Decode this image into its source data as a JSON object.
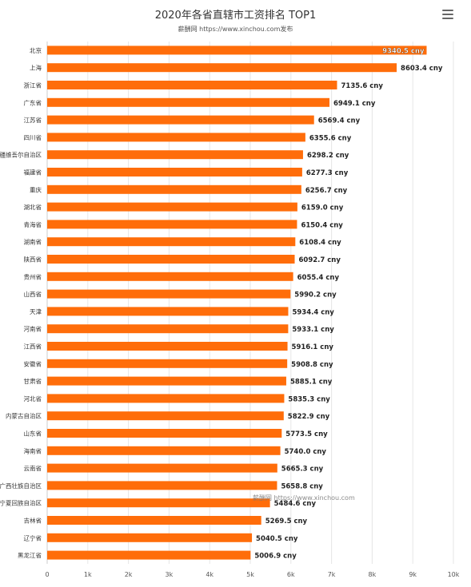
{
  "chart_data": {
    "type": "bar",
    "orientation": "horizontal",
    "title": "2020年各省直辖市工资排名 TOP1",
    "subtitle": "薪酬网 https://www.xinchou.com发布",
    "categories": [
      "北京",
      "上海",
      "浙江省",
      "广东省",
      "江苏省",
      "四川省",
      "新疆维吾尔自治区",
      "福建省",
      "重庆",
      "湖北省",
      "青海省",
      "湖南省",
      "陕西省",
      "贵州省",
      "山西省",
      "天津",
      "河南省",
      "江西省",
      "安徽省",
      "甘肃省",
      "河北省",
      "内蒙古自治区",
      "山东省",
      "海南省",
      "云南省",
      "广西壮族自治区",
      "宁夏回族自治区",
      "吉林省",
      "辽宁省",
      "黑龙江省"
    ],
    "values": [
      9340.5,
      8603.4,
      7135.6,
      6949.1,
      6569.4,
      6355.6,
      6298.2,
      6277.3,
      6256.7,
      6159.0,
      6150.4,
      6108.4,
      6092.7,
      6055.4,
      5990.2,
      5934.4,
      5933.1,
      5916.1,
      5908.8,
      5885.1,
      5835.3,
      5822.9,
      5773.5,
      5740.0,
      5665.3,
      5658.8,
      5484.6,
      5269.5,
      5040.5,
      5006.9
    ],
    "data_labels": [
      "9340.5 cny",
      "8603.4 cny",
      "7135.6 cny",
      "6949.1 cny",
      "6569.4 cny",
      "6355.6 cny",
      "6298.2 cny",
      "6277.3 cny",
      "6256.7 cny",
      "6159.0 cny",
      "6150.4 cny",
      "6108.4 cny",
      "6092.7 cny",
      "6055.4 cny",
      "5990.2 cny",
      "5934.4 cny",
      "5933.1 cny",
      "5916.1 cny",
      "5908.8 cny",
      "5885.1 cny",
      "5835.3 cny",
      "5822.9 cny",
      "5773.5 cny",
      "5740.0 cny",
      "5665.3 cny",
      "5658.8 cny",
      "5484.6 cny",
      "5269.5 cny",
      "5040.5 cny",
      "5006.9 cny"
    ],
    "xlim": [
      0,
      10000
    ],
    "x_ticks": [
      0,
      1000,
      2000,
      3000,
      4000,
      5000,
      6000,
      7000,
      8000,
      9000,
      10000
    ],
    "x_tick_labels": [
      "0",
      "1k",
      "2k",
      "3k",
      "4k",
      "5k",
      "6k",
      "7k",
      "8k",
      "9k",
      "10k"
    ],
    "xlabel": "",
    "ylabel": "",
    "grid": true,
    "legend": "none",
    "colors": {
      "bar": "#FF6D0A",
      "grid": "#E6E6E6",
      "label": "#222222",
      "category": "#333333",
      "axis": "#CCCCCC"
    }
  },
  "watermark": "薪酬网 https://www.xinchou.com",
  "menu_icon": "hamburger-menu-icon"
}
